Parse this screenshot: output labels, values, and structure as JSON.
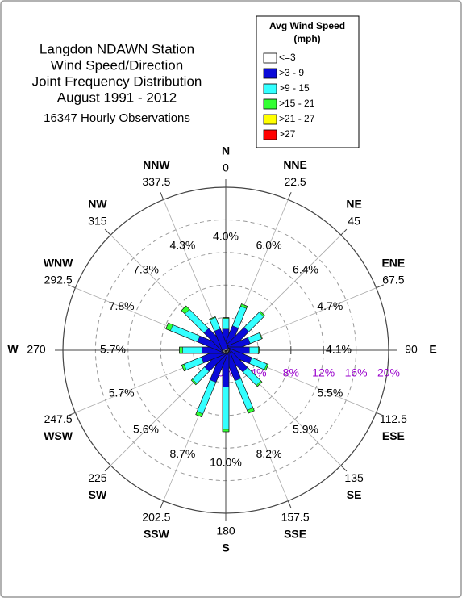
{
  "chart_data": {
    "type": "windrose",
    "title": [
      "Langdon NDAWN Station",
      "Wind Speed/Direction",
      "Joint Frequency Distribution",
      "August 1991 - 2012"
    ],
    "subtitle": "16347 Hourly Observations",
    "legend_title": [
      "Avg Wind Speed",
      "(mph)"
    ],
    "directions": [
      "N",
      "NNE",
      "NE",
      "ENE",
      "E",
      "ESE",
      "SE",
      "SSE",
      "S",
      "SSW",
      "SW",
      "WSW",
      "W",
      "WNW",
      "NW",
      "NNW"
    ],
    "degrees": [
      0,
      22.5,
      45,
      67.5,
      90,
      112.5,
      135,
      157.5,
      180,
      202.5,
      225,
      247.5,
      270,
      292.5,
      315,
      337.5
    ],
    "frequencies": [
      4.0,
      6.0,
      6.4,
      4.7,
      4.1,
      5.5,
      5.9,
      8.2,
      10.0,
      8.7,
      5.6,
      5.7,
      5.7,
      7.8,
      7.3,
      4.3
    ],
    "frequency_labels": [
      "4.0%",
      "6.0%",
      "6.4%",
      "4.7%",
      "4.1%",
      "5.5%",
      "5.9%",
      "8.2%",
      "10.0%",
      "8.7%",
      "5.6%",
      "5.7%",
      "5.7%",
      "7.8%",
      "7.3%",
      "4.3%"
    ],
    "series": [
      {
        "name": "<=3",
        "color": "#ffffff",
        "values": [
          0.1,
          0.1,
          0.1,
          0.1,
          0.1,
          0.1,
          0.1,
          0.1,
          0.1,
          0.1,
          0.1,
          0.1,
          0.1,
          0.1,
          0.1,
          0.1
        ]
      },
      {
        "name": ">3 - 9",
        "color": "#0a0ad8",
        "values": [
          2.5,
          3.0,
          3.5,
          3.0,
          2.8,
          3.2,
          3.3,
          3.8,
          4.4,
          4.0,
          3.2,
          3.0,
          2.8,
          3.5,
          3.3,
          2.6
        ]
      },
      {
        "name": ">9 - 15",
        "color": "#33ffff",
        "values": [
          1.3,
          2.6,
          2.6,
          1.5,
          1.1,
          2.0,
          2.3,
          3.9,
          5.2,
          4.2,
          2.1,
          2.3,
          2.4,
          3.6,
          3.3,
          1.5
        ]
      },
      {
        "name": ">15 - 21",
        "color": "#33ff33",
        "values": [
          0.1,
          0.3,
          0.2,
          0.1,
          0.1,
          0.2,
          0.2,
          0.4,
          0.3,
          0.4,
          0.2,
          0.3,
          0.4,
          0.6,
          0.6,
          0.1
        ]
      },
      {
        "name": ">21 - 27",
        "color": "#ffff00",
        "values": [
          0,
          0,
          0,
          0,
          0,
          0,
          0,
          0,
          0,
          0,
          0,
          0,
          0,
          0,
          0,
          0
        ]
      },
      {
        "name": ">27",
        "color": "#ff0000",
        "values": [
          0,
          0,
          0,
          0,
          0,
          0,
          0,
          0,
          0,
          0,
          0,
          0,
          0,
          0,
          0,
          0
        ]
      }
    ],
    "rlim": [
      0,
      20
    ],
    "rticks": [
      {
        "value": 0,
        "label": "0%"
      },
      {
        "value": 4,
        "label": "4%"
      },
      {
        "value": 8,
        "label": "8%"
      },
      {
        "value": 12,
        "label": "12%"
      },
      {
        "value": 16,
        "label": "16%"
      },
      {
        "value": 20,
        "label": "20%"
      }
    ]
  }
}
